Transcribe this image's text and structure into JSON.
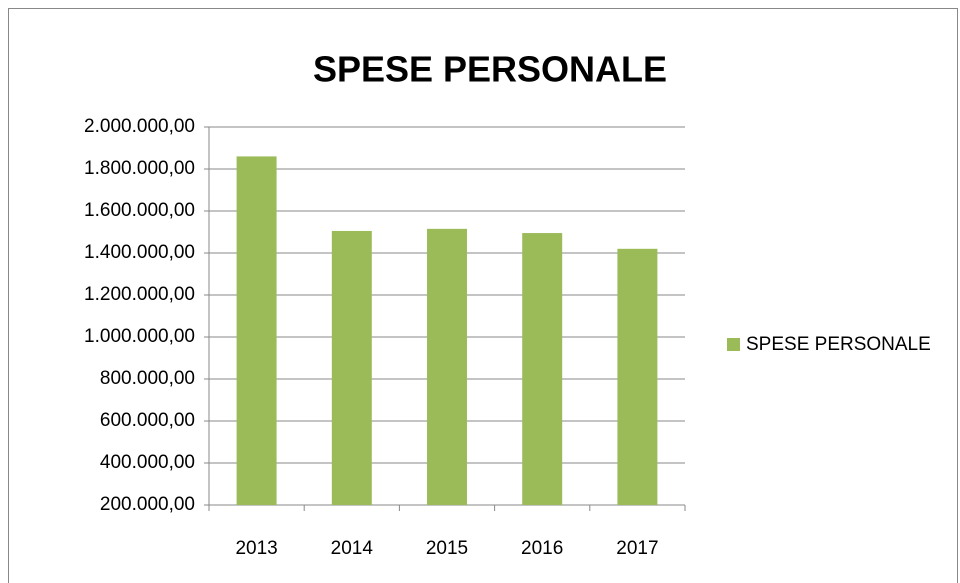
{
  "chart_data": {
    "type": "bar",
    "title": "SPESE PERSONALE",
    "categories": [
      "2013",
      "2014",
      "2015",
      "2016",
      "2017"
    ],
    "series": [
      {
        "name": "SPESE PERSONALE",
        "color": "#9bbb59",
        "values": [
          1860000,
          1505000,
          1515000,
          1495000,
          1420000
        ]
      }
    ],
    "ylim": [
      200000,
      2000000
    ],
    "yticks": [
      {
        "value": 200000,
        "label": "200.000,00"
      },
      {
        "value": 400000,
        "label": "400.000,00"
      },
      {
        "value": 600000,
        "label": "600.000,00"
      },
      {
        "value": 800000,
        "label": "800.000,00"
      },
      {
        "value": 1000000,
        "label": "1.000.000,00"
      },
      {
        "value": 1200000,
        "label": "1.200.000,00"
      },
      {
        "value": 1400000,
        "label": "1.400.000,00"
      },
      {
        "value": 1600000,
        "label": "1.600.000,00"
      },
      {
        "value": 1800000,
        "label": "1.800.000,00"
      },
      {
        "value": 2000000,
        "label": "2.000.000,00"
      }
    ],
    "grid": true,
    "legend": "right"
  }
}
